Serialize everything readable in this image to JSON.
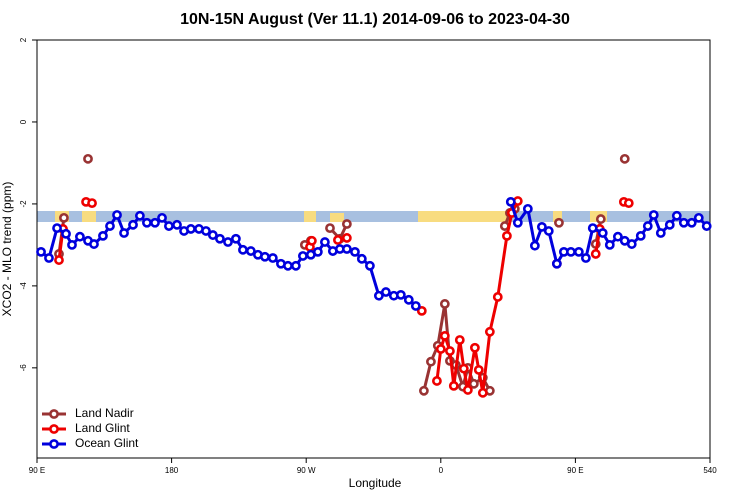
{
  "chart_data": {
    "type": "line",
    "title": "10N-15N August (Ver 11.1)   2014-09-06 to 2023-04-30",
    "xlabel": "Longitude",
    "ylabel": "XCO2 - MLO trend (ppm)",
    "xlim": [
      90,
      540
    ],
    "ylim": [
      -8.2,
      2.0
    ],
    "xticks": [
      {
        "value": 90,
        "label": "90 E"
      },
      180,
      {
        "value": 270,
        "label": "90 W"
      },
      {
        "value": 360,
        "label": "0"
      },
      {
        "value": 450,
        "label": "90 E"
      },
      540
    ],
    "yticks": [
      2,
      0,
      -2,
      -4,
      -6
    ],
    "legend": "bottom-left",
    "series": [
      {
        "name": "Land Nadir",
        "color": "#993333",
        "x": [
          104.7,
          108.0,
          null,
          124.1,
          null,
          269.1,
          273.1,
          null,
          285.9,
          292.5,
          297.2,
          null,
          348.7,
          353.4,
          358.0,
          362.7,
          366.1,
          370.1,
          374.8,
          378.1,
          382.1,
          388.1,
          392.8,
          null,
          402.8,
          406.2,
          409.5,
          null,
          439.0,
          null,
          463.6,
          467.0,
          null,
          483.0
        ],
        "values": [
          -3.22,
          -2.34,
          null,
          -0.9,
          null,
          -3.0,
          -2.9,
          null,
          -2.59,
          -2.85,
          -2.49,
          null,
          -6.56,
          -5.85,
          -5.46,
          -4.44,
          -5.83,
          -5.93,
          -6.46,
          -6.0,
          -6.39,
          -6.24,
          -6.56,
          null,
          -2.54,
          -2.22,
          -2.12,
          null,
          -2.46,
          null,
          -2.98,
          -2.37,
          null,
          -0.9
        ]
      },
      {
        "name": "Land Glint",
        "color": "#ee0000",
        "x": [
          104.7,
          107.4,
          null,
          122.8,
          null,
          126.8,
          null,
          272.5,
          273.8,
          null,
          291.2,
          297.2,
          null,
          347.3,
          null,
          357.4,
          360.0,
          362.7,
          366.1,
          368.7,
          372.7,
          375.4,
          378.1,
          382.8,
          385.4,
          388.1,
          392.8,
          398.1,
          404.2,
          407.5,
          411.5,
          null,
          437.6,
          null,
          463.6,
          466.3,
          null,
          482.4,
          null,
          485.7
        ],
        "values": [
          -3.37,
          -2.61,
          null,
          -1.95,
          null,
          -1.98,
          null,
          -3.05,
          -2.9,
          null,
          -2.88,
          -2.83,
          null,
          -4.61,
          null,
          -6.32,
          -5.54,
          -5.22,
          -5.59,
          -6.44,
          -5.32,
          -6.02,
          -6.54,
          -5.51,
          -6.05,
          -6.61,
          -5.12,
          -4.27,
          -2.78,
          -2.22,
          -1.93,
          null,
          -3.46,
          null,
          -3.22,
          -2.61,
          null,
          -1.95,
          null,
          -1.98
        ]
      },
      {
        "name": "Ocean Glint",
        "color": "#0000dd",
        "x": [
          92.7,
          98.0,
          103.4,
          109.4,
          113.4,
          118.7,
          124.1,
          128.1,
          134.1,
          138.8,
          143.5,
          148.2,
          154.2,
          158.8,
          163.5,
          168.9,
          173.6,
          178.2,
          183.6,
          188.3,
          192.9,
          198.3,
          203.0,
          207.6,
          212.3,
          217.7,
          223.0,
          227.7,
          233.0,
          237.7,
          242.4,
          247.7,
          253.1,
          257.8,
          263.1,
          267.8,
          273.1,
          277.8,
          282.5,
          287.8,
          292.5,
          297.2,
          302.6,
          307.2,
          312.6,
          318.6,
          323.3,
          328.6,
          333.3,
          338.6,
          343.3,
          null,
          406.8,
          411.5,
          418.2,
          422.9,
          427.6,
          432.2,
          437.6,
          442.3,
          447.0,
          452.3,
          457.0,
          461.6,
          468.3,
          473.0,
          478.4,
          483.0,
          487.7,
          493.7,
          498.4,
          502.4,
          507.1,
          513.1,
          517.8,
          522.5,
          527.8,
          532.5,
          537.8
        ],
        "values": [
          -3.17,
          -3.32,
          -2.59,
          -2.73,
          -3.0,
          -2.8,
          -2.9,
          -2.98,
          -2.78,
          -2.54,
          -2.27,
          -2.71,
          -2.51,
          -2.29,
          -2.46,
          -2.46,
          -2.34,
          -2.54,
          -2.51,
          -2.66,
          -2.61,
          -2.61,
          -2.66,
          -2.76,
          -2.85,
          -2.93,
          -2.85,
          -3.12,
          -3.15,
          -3.24,
          -3.29,
          -3.32,
          -3.46,
          -3.51,
          -3.51,
          -3.27,
          -3.24,
          -3.17,
          -2.93,
          -3.15,
          -3.1,
          -3.1,
          -3.17,
          -3.34,
          -3.51,
          -4.24,
          -4.15,
          -4.24,
          -4.22,
          -4.34,
          -4.49,
          null,
          -1.95,
          -2.46,
          -2.12,
          -3.02,
          -2.56,
          -2.66,
          -3.46,
          -3.17,
          -3.17,
          -3.17,
          -3.32,
          -2.59,
          -2.71,
          -3.0,
          -2.8,
          -2.9,
          -2.98,
          -2.78,
          -2.54,
          -2.27,
          -2.71,
          -2.51,
          -2.29,
          -2.46,
          -2.46,
          -2.34,
          -2.54
        ]
      }
    ]
  }
}
